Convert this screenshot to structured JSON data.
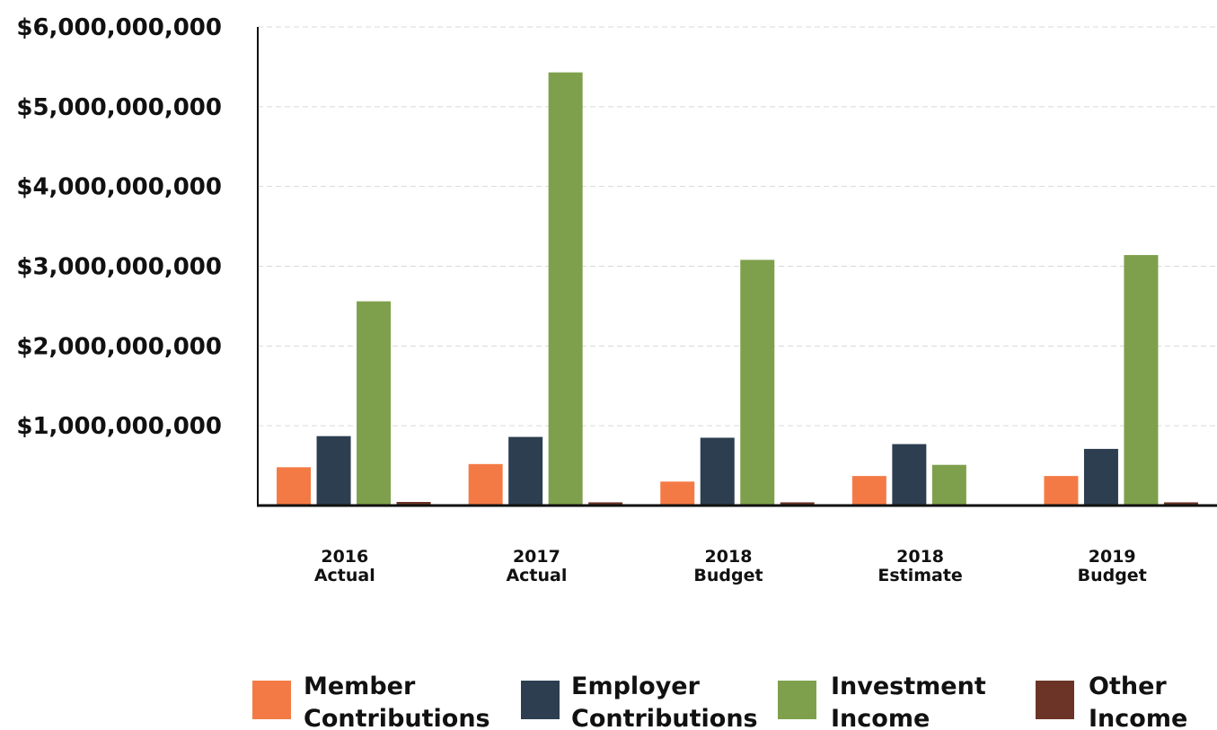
{
  "chart_data": {
    "type": "bar",
    "categories": [
      [
        "2016",
        "Actual"
      ],
      [
        "2017",
        "Actual"
      ],
      [
        "2018",
        "Budget"
      ],
      [
        "2018",
        "Estimate"
      ],
      [
        "2019",
        "Budget"
      ]
    ],
    "series": [
      {
        "name": [
          "Member",
          "Contributions"
        ],
        "color": "#f47a45",
        "values": [
          480000000,
          520000000,
          300000000,
          370000000,
          370000000
        ]
      },
      {
        "name": [
          "Employer",
          "Contributions"
        ],
        "color": "#2d3e50",
        "values": [
          870000000,
          860000000,
          850000000,
          770000000,
          710000000
        ]
      },
      {
        "name": [
          "Investment",
          "Income"
        ],
        "color": "#7ea04c",
        "values": [
          2560000000,
          5430000000,
          3080000000,
          510000000,
          3140000000
        ]
      },
      {
        "name": [
          "Other",
          "Income"
        ],
        "color": "#6b3426",
        "values": [
          45000000,
          40000000,
          40000000,
          15000000,
          40000000
        ]
      }
    ],
    "yticks": [
      "$1,000,000,000",
      "$2,000,000,000",
      "$3,000,000,000",
      "$4,000,000,000",
      "$5,000,000,000",
      "$6,000,000,000"
    ],
    "ylim": [
      0,
      6000000000
    ],
    "grid": true,
    "legend_position": "bottom"
  }
}
